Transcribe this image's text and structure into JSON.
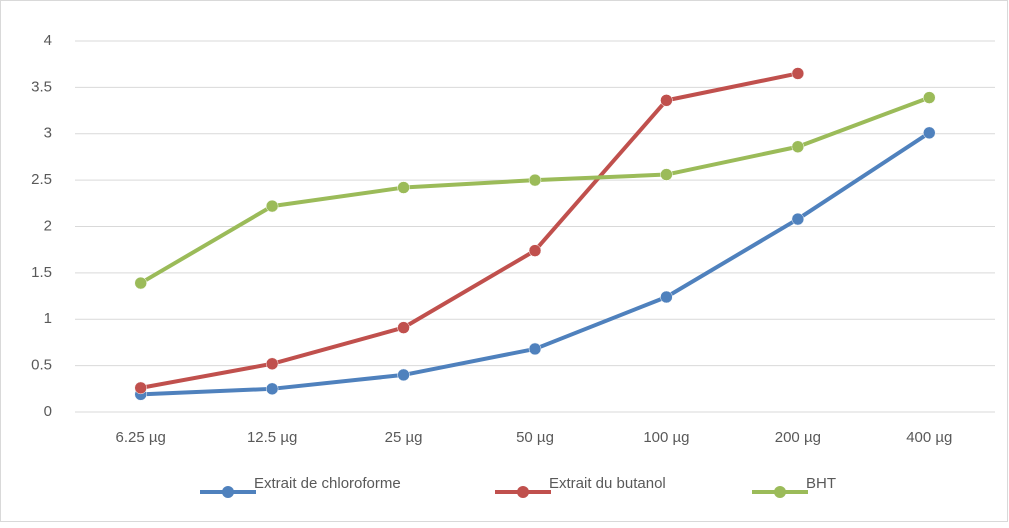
{
  "chart_data": {
    "type": "line",
    "categories": [
      "6.25 µg",
      "12.5 µg",
      "25 µg",
      "50 µg",
      "100 µg",
      "200 µg",
      "400 µg"
    ],
    "series": [
      {
        "name": "Extrait de chloroforme",
        "color": "#4f81bd",
        "values": [
          0.19,
          0.25,
          0.4,
          0.68,
          1.24,
          2.08,
          3.01
        ]
      },
      {
        "name": "Extrait du butanol",
        "color": "#c0504d",
        "values": [
          0.26,
          0.52,
          0.91,
          1.74,
          3.36,
          3.65,
          null
        ]
      },
      {
        "name": "BHT",
        "color": "#9bbb59",
        "values": [
          1.39,
          2.22,
          2.42,
          2.5,
          2.56,
          2.86,
          3.39
        ]
      }
    ],
    "ylim": [
      0,
      4
    ],
    "yticks": [
      0,
      0.5,
      1,
      1.5,
      2,
      2.5,
      3,
      3.5,
      4
    ],
    "grid": true,
    "legend": "bottom"
  }
}
